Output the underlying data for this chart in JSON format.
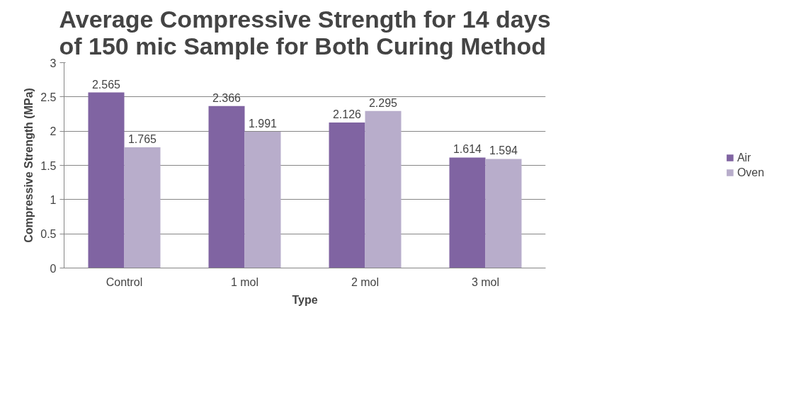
{
  "chart_data": {
    "type": "bar",
    "title": "Average Compressive Strength for 14 days of 150 mic Sample for Both Curing Method",
    "xlabel": "Type",
    "ylabel": "Compressive Strength (MPa)",
    "categories": [
      "Control",
      "1 mol",
      "2 mol",
      "3 mol"
    ],
    "series": [
      {
        "name": "Air",
        "color": "#8064a2",
        "values": [
          2.565,
          2.366,
          2.126,
          1.614
        ]
      },
      {
        "name": "Oven",
        "color": "#b8adcb",
        "values": [
          1.765,
          1.991,
          2.295,
          1.594
        ]
      }
    ],
    "ylim": [
      0,
      3
    ],
    "yticks": [
      0,
      0.5,
      1,
      1.5,
      2,
      2.5,
      3
    ],
    "grid": "y",
    "legend": "right",
    "data_labels": true
  }
}
